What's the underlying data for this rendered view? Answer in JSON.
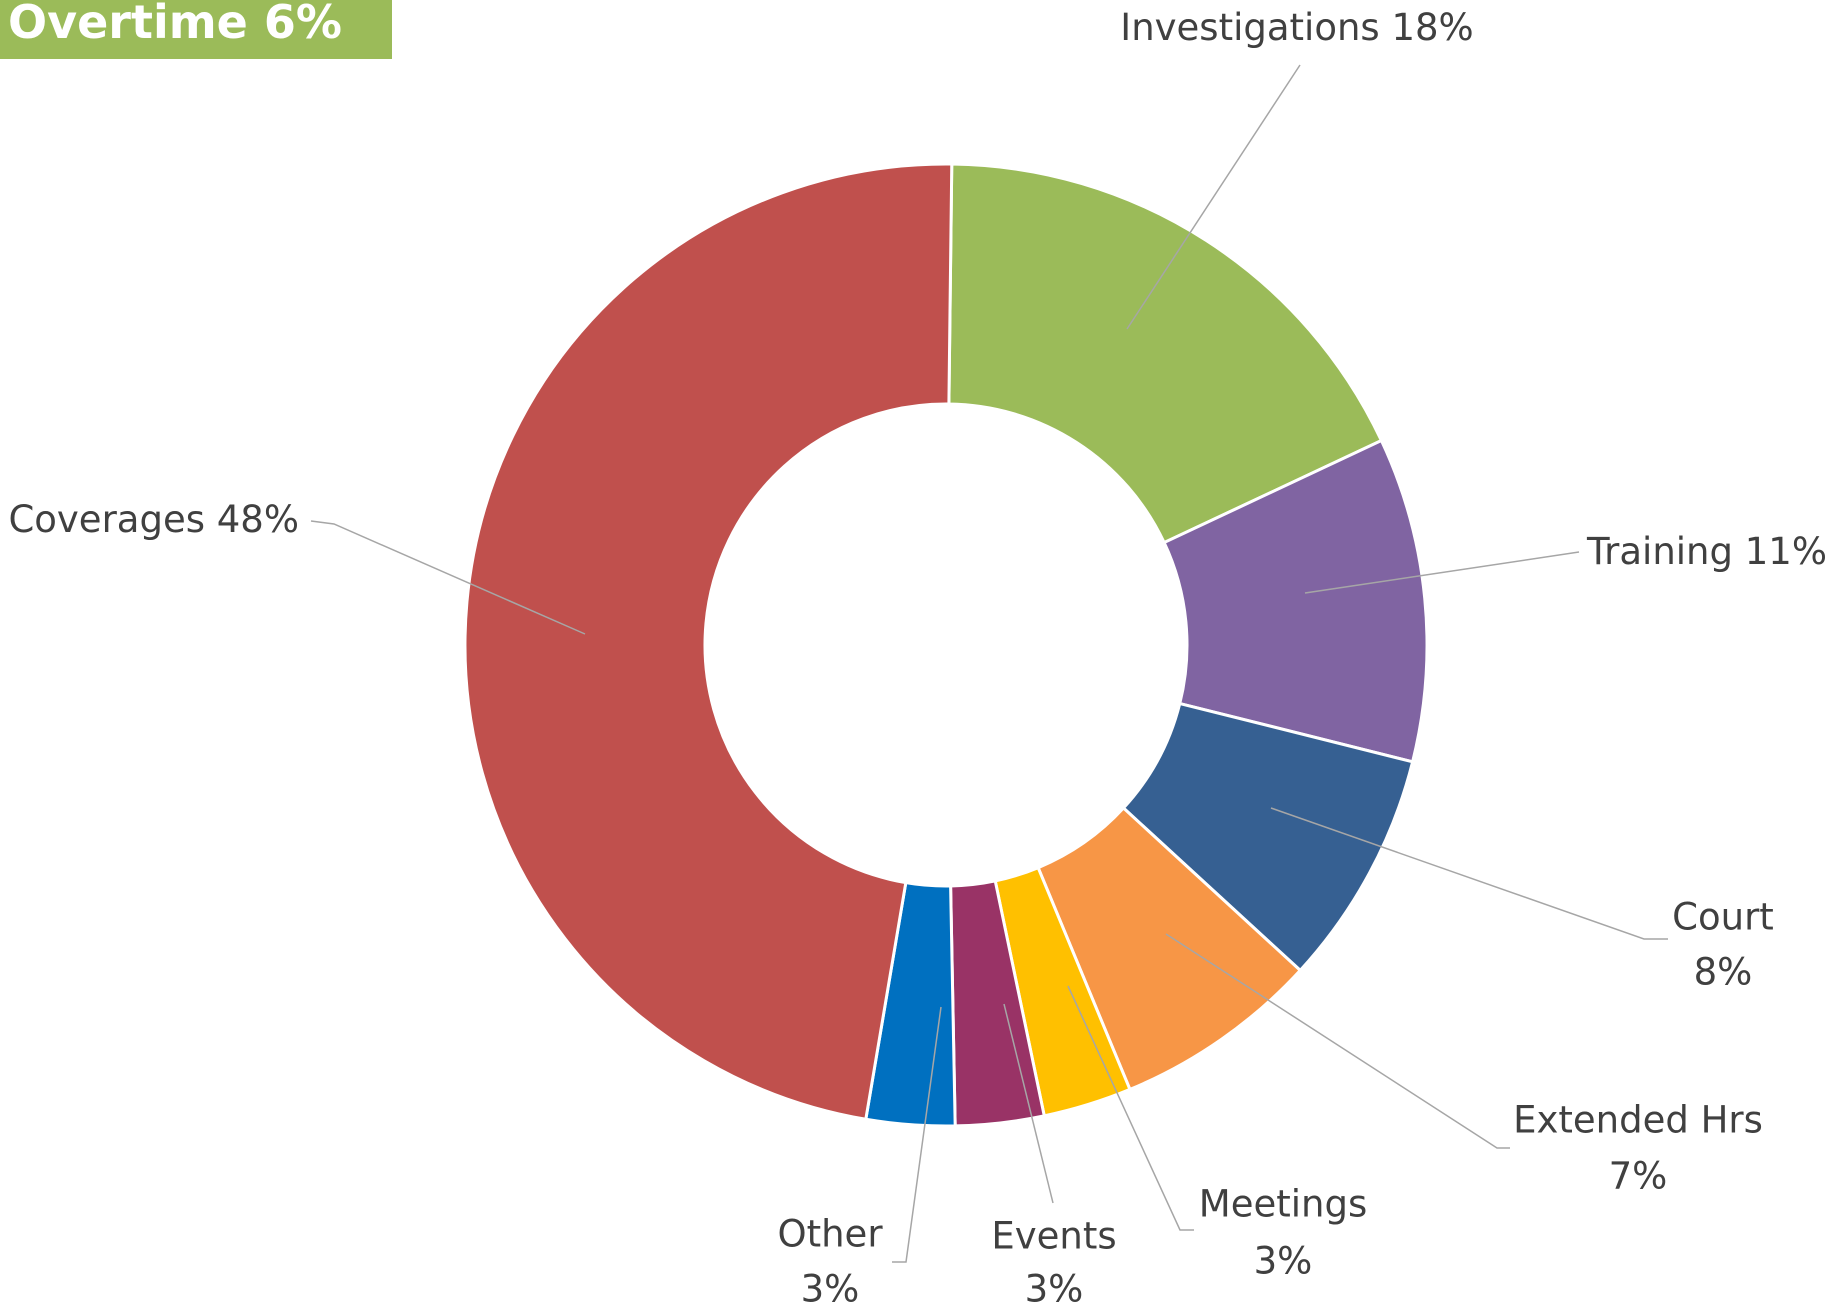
{
  "chart_data": {
    "type": "donut",
    "title": "Overtime 6%",
    "title_color": "#9bbb59",
    "categories": [
      "Investigations",
      "Training",
      "Court",
      "Extended Hrs",
      "Meetings",
      "Events",
      "Other",
      "Coverages"
    ],
    "values": [
      18,
      11,
      8,
      7,
      3,
      3,
      3,
      48
    ],
    "value_labels": [
      "18%",
      "11%",
      "8%",
      "7%",
      "3%",
      "3%",
      "3%",
      "48%"
    ],
    "colors": [
      "#9bbb59",
      "#8064a2",
      "#366092",
      "#f79646",
      "#ffc000",
      "#993366",
      "#0070c0",
      "#c0504d"
    ]
  }
}
